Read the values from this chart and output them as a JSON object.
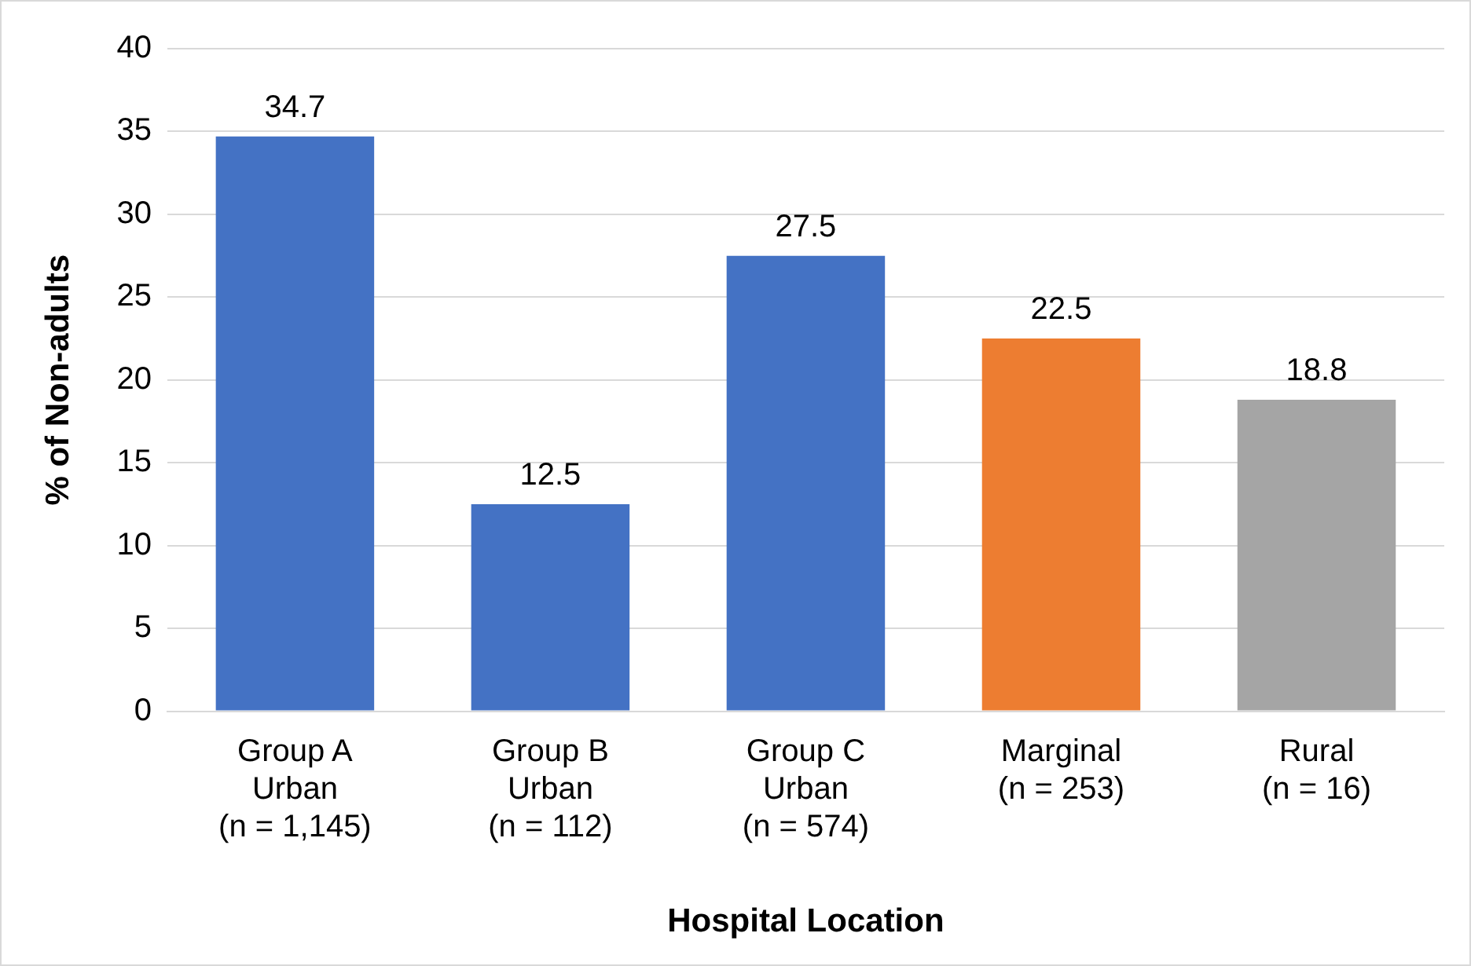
{
  "chart_data": {
    "type": "bar",
    "xlabel": "Hospital Location",
    "ylabel": "% of Non-adults",
    "categories": [
      "Group A\nUrban\n(n = 1,145)",
      "Group B\nUrban\n(n = 112)",
      "Group C\nUrban\n(n = 574)",
      "Marginal\n(n = 253)",
      "Rural\n(n = 16)"
    ],
    "values": [
      34.7,
      12.5,
      27.5,
      22.5,
      18.8
    ],
    "colors": [
      "#4472c4",
      "#4472c4",
      "#4472c4",
      "#ed7d31",
      "#a5a5a5"
    ],
    "ylim": [
      0,
      40
    ],
    "yticks": [
      0,
      5,
      10,
      15,
      20,
      25,
      30,
      35,
      40
    ],
    "grid": "y",
    "data_labels": true,
    "legend": false
  }
}
